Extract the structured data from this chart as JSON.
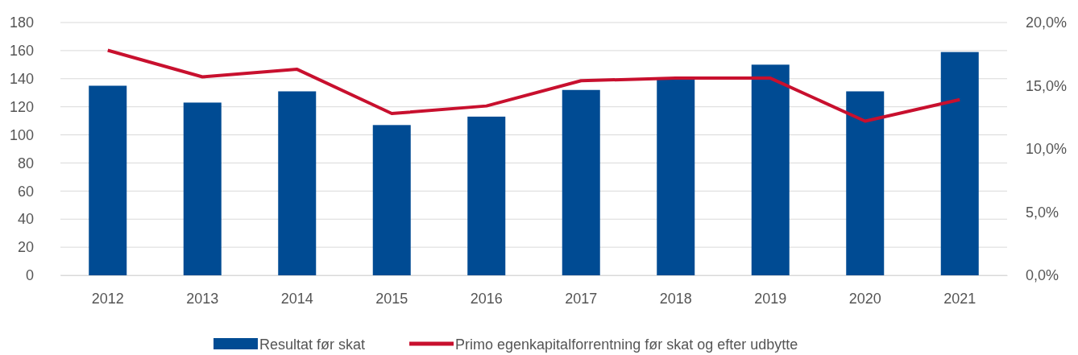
{
  "chart_data": {
    "type": "bar",
    "categories": [
      "2012",
      "2013",
      "2014",
      "2015",
      "2016",
      "2017",
      "2018",
      "2019",
      "2020",
      "2021"
    ],
    "series": [
      {
        "name": "Resultat før skat",
        "color": "#004b93",
        "values": [
          135,
          123,
          131,
          107,
          113,
          132,
          140,
          150,
          131,
          159
        ]
      },
      {
        "name": "Primo egenkapitalforrentning før skat og efter udbytte",
        "type": "line",
        "axis": "y2",
        "color": "#c8102e",
        "values": [
          17.8,
          15.7,
          16.3,
          12.8,
          13.4,
          15.4,
          15.6,
          15.6,
          12.2,
          13.9
        ]
      }
    ],
    "ylim": [
      0,
      180
    ],
    "yticks": [
      0,
      20,
      40,
      60,
      80,
      100,
      120,
      140,
      160,
      180
    ],
    "y2lim": [
      0,
      20
    ],
    "y2ticks": [
      {
        "value": 0,
        "label": "0,0%"
      },
      {
        "value": 5,
        "label": "5,0%"
      },
      {
        "value": 10,
        "label": "10,0%"
      },
      {
        "value": 15,
        "label": "15,0%"
      },
      {
        "value": 20,
        "label": "20,0%"
      }
    ],
    "grid": "y",
    "legend": "bottom",
    "marker": "none",
    "line_style": "solid"
  }
}
